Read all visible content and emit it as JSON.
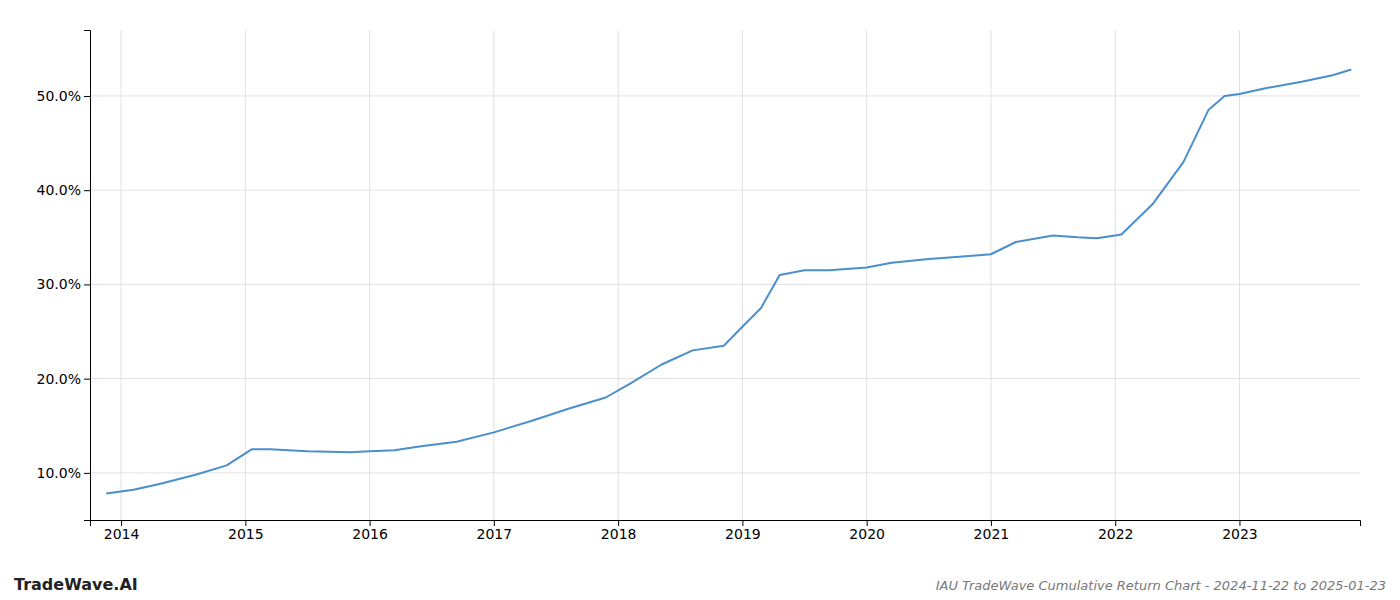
{
  "chart_data": {
    "type": "line",
    "title": "IAU TradeWave Cumulative Return Chart - 2024-11-22 to 2025-01-23",
    "annotations": [
      "TradeWave.AI"
    ],
    "x": [
      2013.88,
      2014.1,
      2014.3,
      2014.6,
      2014.85,
      2015.05,
      2015.2,
      2015.5,
      2015.85,
      2016.0,
      2016.2,
      2016.4,
      2016.7,
      2017.0,
      2017.3,
      2017.6,
      2017.9,
      2018.1,
      2018.35,
      2018.6,
      2018.85,
      2019.0,
      2019.15,
      2019.3,
      2019.5,
      2019.7,
      2020.0,
      2020.2,
      2020.5,
      2020.8,
      2021.0,
      2021.2,
      2021.5,
      2021.7,
      2021.85,
      2022.0,
      2022.05,
      2022.3,
      2022.55,
      2022.75,
      2022.88,
      2023.0,
      2023.2,
      2023.5,
      2023.75,
      2023.9
    ],
    "values": [
      7.8,
      8.2,
      8.8,
      9.8,
      10.8,
      12.5,
      12.5,
      12.3,
      12.2,
      12.3,
      12.4,
      12.8,
      13.3,
      14.3,
      15.5,
      16.8,
      18.0,
      19.5,
      21.5,
      23.0,
      23.5,
      25.5,
      27.5,
      31.0,
      31.5,
      31.5,
      31.8,
      32.3,
      32.7,
      33.0,
      33.2,
      34.5,
      35.2,
      35.0,
      34.9,
      35.2,
      35.3,
      38.5,
      43.0,
      48.5,
      50.0,
      50.2,
      50.8,
      51.5,
      52.2,
      52.8
    ],
    "color": "#4a8fcc",
    "xlim": [
      2013.75,
      2023.97
    ],
    "xticks": [
      2014,
      2015,
      2016,
      2017,
      2018,
      2019,
      2020,
      2021,
      2022,
      2023
    ],
    "ylim": [
      5.0,
      57.0
    ],
    "yticks": [
      {
        "value": 10.0,
        "label": "10.0%"
      },
      {
        "value": 20.0,
        "label": "20.0%"
      },
      {
        "value": 30.0,
        "label": "30.0%"
      },
      {
        "value": 40.0,
        "label": "40.0%"
      },
      {
        "value": 50.0,
        "label": "50.0%"
      }
    ],
    "grid": true
  }
}
